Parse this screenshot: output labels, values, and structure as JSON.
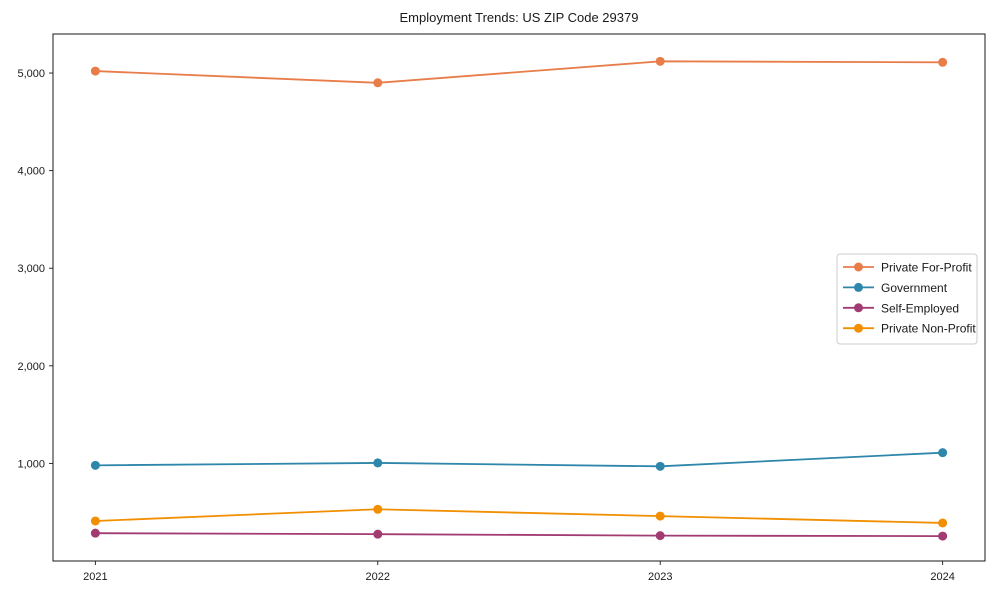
{
  "figure": {
    "background": "#ffffff",
    "frame_color": "#1a1a1a"
  },
  "chart_data": {
    "type": "line",
    "title": "Employment Trends: US ZIP Code 29379",
    "xlabel": "",
    "ylabel": "",
    "x": [
      2021,
      2022,
      2023,
      2024
    ],
    "x_tick_labels": [
      "2021",
      "2022",
      "2023",
      "2024"
    ],
    "series": [
      {
        "name": "Private For-Profit",
        "color": "#E87D4A",
        "values": [
          5020,
          4900,
          5120,
          5110
        ]
      },
      {
        "name": "Government",
        "color": "#2E86AB",
        "values": [
          980,
          1005,
          970,
          1110
        ]
      },
      {
        "name": "Self-Employed",
        "color": "#A23B72",
        "values": [
          285,
          275,
          260,
          255
        ]
      },
      {
        "name": "Private Non-Profit",
        "color": "#F18F01",
        "values": [
          410,
          530,
          460,
          390
        ]
      }
    ],
    "xlim": [
      2020.85,
      2024.15
    ],
    "ylim": [
      0,
      5400
    ],
    "yticks": [
      1000,
      2000,
      3000,
      4000,
      5000
    ],
    "ytick_labels": [
      "1,000",
      "2,000",
      "3,000",
      "4,000",
      "5,000"
    ],
    "grid": false,
    "legend": {
      "position": "center-right",
      "entries": [
        "Private For-Profit",
        "Government",
        "Self-Employed",
        "Private Non-Profit"
      ]
    },
    "marker": "circle",
    "line_width": 1.8,
    "marker_radius": 4.5
  }
}
